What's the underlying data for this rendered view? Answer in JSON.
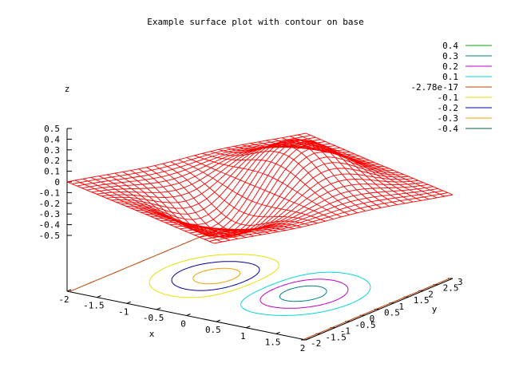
{
  "chart_data": {
    "type": "surface",
    "title": "Example surface plot with contour on base",
    "xlabel": "x",
    "ylabel": "y",
    "zlabel": "z",
    "xlim": [
      -2,
      2
    ],
    "ylim": [
      -2,
      3
    ],
    "zlim": [
      -0.5,
      0.5
    ],
    "x_ticks": [
      "-2",
      "-1.5",
      "-1",
      "-0.5",
      "0",
      "0.5",
      "1",
      "1.5",
      "2"
    ],
    "y_ticks": [
      "-2",
      "-1.5",
      "-1",
      "-0.5",
      "0",
      "0.5",
      "1",
      "1.5",
      "2",
      "2.5",
      "3"
    ],
    "z_ticks": [
      "0.5",
      "0.4",
      "0.3",
      "0.2",
      "0.1",
      "0",
      "-0.1",
      "-0.2",
      "-0.3",
      "-0.4",
      "-0.5"
    ],
    "surface_color": "#ff0000",
    "surface_grid": 30,
    "contour_levels": [
      {
        "label": "0.4",
        "value": 0.4,
        "color": "#00a000"
      },
      {
        "label": "0.3",
        "value": 0.3,
        "color": "#008080"
      },
      {
        "label": "0.2",
        "value": 0.2,
        "color": "#c000c0"
      },
      {
        "label": "0.1",
        "value": 0.1,
        "color": "#00d8d8"
      },
      {
        "label": "-2.78e-17",
        "value": 0.0,
        "color": "#c04000"
      },
      {
        "label": "-0.1",
        "value": -0.1,
        "color": "#e8e000"
      },
      {
        "label": "-0.2",
        "value": -0.2,
        "color": "#0000a0"
      },
      {
        "label": "-0.3",
        "value": -0.3,
        "color": "#f0a000"
      },
      {
        "label": "-0.4",
        "value": -0.4,
        "color": "#006040"
      }
    ],
    "legend_position": "top-right",
    "grid": false
  }
}
